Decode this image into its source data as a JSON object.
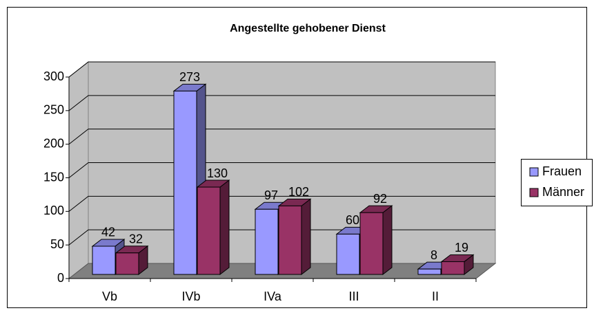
{
  "chart_data": {
    "type": "bar3d",
    "title": "Angestellte gehobener Dienst",
    "categories": [
      "Vb",
      "IVb",
      "IVa",
      "III",
      "II"
    ],
    "series": [
      {
        "name": "Frauen",
        "color": "#9999ff",
        "values": [
          42,
          273,
          97,
          60,
          8
        ]
      },
      {
        "name": "Männer",
        "color": "#993366",
        "values": [
          32,
          130,
          102,
          92,
          19
        ]
      }
    ],
    "ylim": [
      0,
      300
    ],
    "yticks": [
      0,
      50,
      100,
      150,
      200,
      250,
      300
    ],
    "grid": true,
    "legend": "right"
  }
}
